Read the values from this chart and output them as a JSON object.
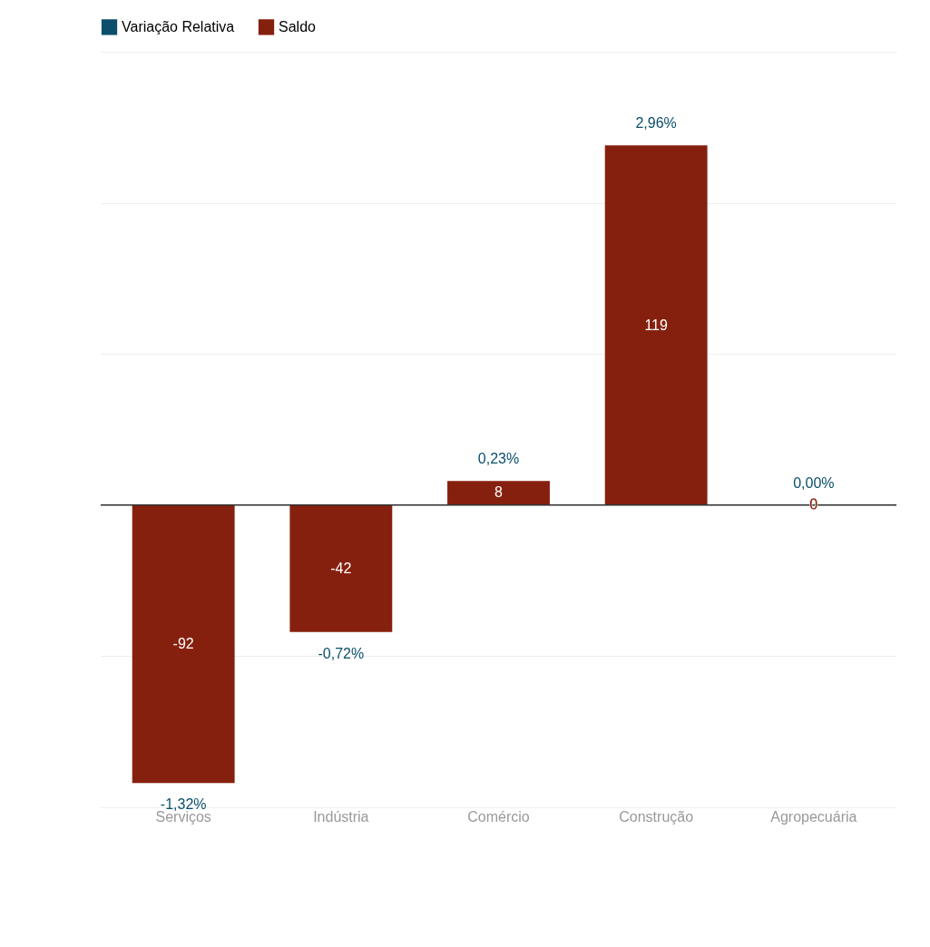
{
  "chart_data": {
    "type": "bar",
    "categories": [
      "Serviços",
      "Indústria",
      "Comércio",
      "Construção",
      "Agropecuária"
    ],
    "series": [
      {
        "name": "Variação Relativa",
        "color": "#0b4f6c",
        "values": [
          null,
          null,
          null,
          null,
          null
        ]
      },
      {
        "name": "Saldo",
        "color": "#86200e",
        "values": [
          -92,
          -42,
          8,
          119,
          0
        ]
      }
    ],
    "annotations": [
      {
        "text": "-1,32%",
        "x": "Serviços",
        "y": -92
      },
      {
        "text": "-0,72%",
        "x": "Indústria",
        "y": -42
      },
      {
        "text": "0,23%",
        "x": "Comércio",
        "y": 8
      },
      {
        "text": "2,96%",
        "x": "Construção",
        "y": 119
      },
      {
        "text": "0,00%",
        "x": "Agropecuária",
        "y": 0
      }
    ],
    "data_labels": true,
    "ylim": [
      -100,
      150
    ],
    "yticks": [
      {
        "value": -100,
        "label": null
      },
      {
        "value": -50,
        "label": null
      },
      {
        "value": 0,
        "label": null
      },
      {
        "value": 50,
        "label": null
      },
      {
        "value": 100,
        "label": null
      },
      {
        "value": 150,
        "label": null
      }
    ],
    "tick_labels": "x",
    "grid": "y",
    "legend": "top",
    "ref_lines": [
      {
        "axis": "y",
        "value": 0,
        "color": "#333333"
      }
    ]
  }
}
